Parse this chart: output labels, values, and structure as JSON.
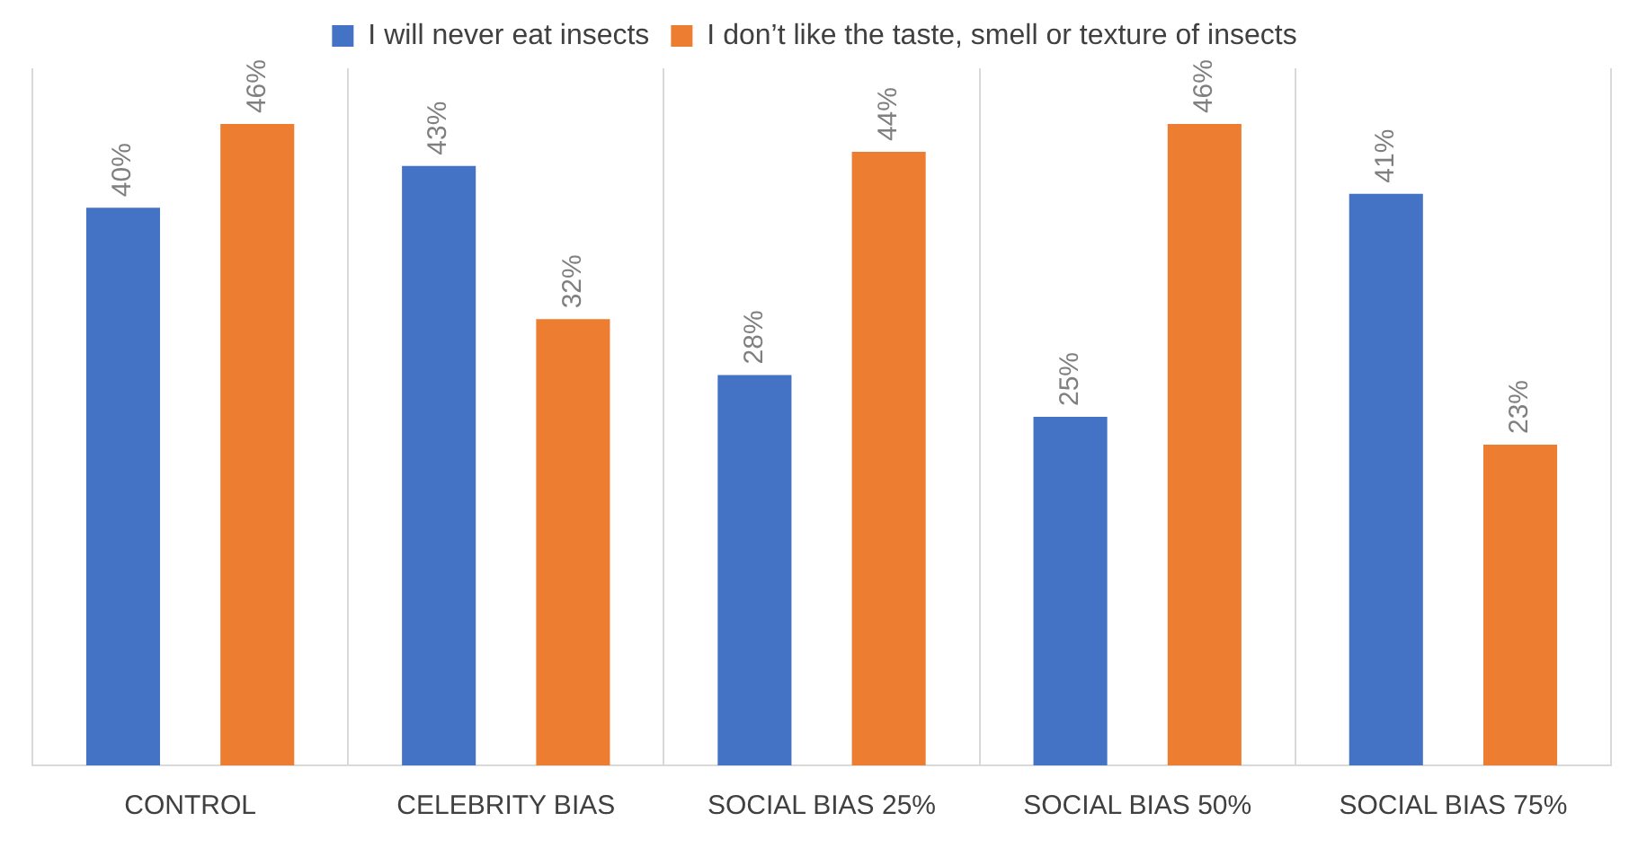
{
  "chart_data": {
    "type": "bar",
    "categories": [
      "CONTROL",
      "CELEBRITY BIAS",
      "SOCIAL BIAS 25%",
      "SOCIAL BIAS 50%",
      "SOCIAL BIAS 75%"
    ],
    "series": [
      {
        "name": "I will never eat insects",
        "color": "#4472c4",
        "values": [
          40,
          43,
          28,
          25,
          41
        ],
        "value_labels": [
          "40%",
          "43%",
          "28%",
          "25%",
          "41%"
        ]
      },
      {
        "name": "I don’t like the taste, smell or texture of insects",
        "color": "#ed7d31",
        "values": [
          46,
          32,
          44,
          46,
          23
        ],
        "value_labels": [
          "46%",
          "32%",
          "44%",
          "46%",
          "23%"
        ]
      }
    ],
    "relative": false,
    "grid": "x",
    "legend": "top"
  }
}
